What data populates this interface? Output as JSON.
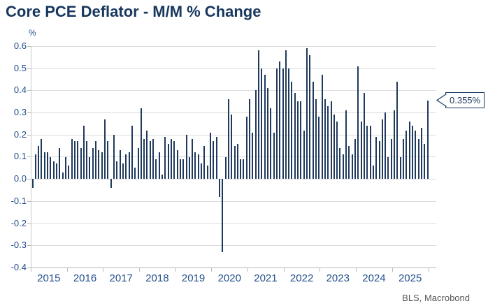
{
  "title": "Core PCE Deflator - M/M % Change",
  "source": "BLS, Macrobond",
  "callout": {
    "label": "0.355%"
  },
  "colors": {
    "title_text": "#17375d",
    "axis_text": "#24508c",
    "bar": "#203a5e",
    "gridline": "#dcdcdc",
    "axis_line": "#b9b9b9",
    "source_text": "#595959",
    "callout_border": "#17375d"
  },
  "chart_data": {
    "type": "bar",
    "title": "Core PCE Deflator - M/M % Change",
    "unit": "%",
    "xlabel": "",
    "ylabel": "%",
    "ylim": [
      -0.4,
      0.6
    ],
    "ytick_step": 0.1,
    "grid": true,
    "years": [
      2015,
      2016,
      2017,
      2018,
      2019,
      2020,
      2021,
      2022,
      2023,
      2024,
      2025
    ],
    "frequency": "monthly",
    "last_value_label": "0.355%",
    "series": [
      {
        "name": "Core PCE Deflator M/M % Change",
        "values": [
          -0.04,
          0.11,
          0.15,
          0.18,
          0.12,
          0.12,
          0.1,
          0.08,
          0.07,
          0.14,
          0.03,
          0.1,
          0.06,
          0.18,
          0.17,
          0.17,
          0.14,
          0.24,
          0.17,
          0.1,
          0.14,
          0.17,
          0.13,
          0.12,
          0.27,
          0.17,
          -0.04,
          0.2,
          0.08,
          0.13,
          0.07,
          0.11,
          0.12,
          0.24,
          0.05,
          0.14,
          0.32,
          0.18,
          0.22,
          0.17,
          0.18,
          0.09,
          0.12,
          0.02,
          0.19,
          0.16,
          0.18,
          0.17,
          0.13,
          0.09,
          0.09,
          0.2,
          0.1,
          0.18,
          0.12,
          0.11,
          0.07,
          0.15,
          0.06,
          0.21,
          0.17,
          0.19,
          -0.08,
          -0.33,
          0.1,
          0.36,
          0.29,
          0.15,
          0.16,
          0.09,
          0.09,
          0.28,
          0.36,
          0.21,
          0.4,
          0.58,
          0.5,
          0.47,
          0.41,
          0.32,
          0.21,
          0.5,
          0.53,
          0.5,
          0.58,
          0.5,
          0.44,
          0.39,
          0.35,
          0.35,
          0.22,
          0.59,
          0.56,
          0.44,
          0.36,
          0.28,
          0.47,
          0.36,
          0.33,
          0.35,
          0.29,
          0.26,
          0.14,
          0.11,
          0.31,
          0.15,
          0.11,
          0.18,
          0.51,
          0.26,
          0.39,
          0.24,
          0.24,
          0.06,
          0.19,
          0.17,
          0.27,
          0.3,
          0.1,
          0.18,
          0.31,
          0.44,
          0.1,
          0.18,
          0.22,
          0.26,
          0.24,
          0.22,
          0.18,
          0.23,
          0.16,
          0.355
        ]
      }
    ]
  }
}
